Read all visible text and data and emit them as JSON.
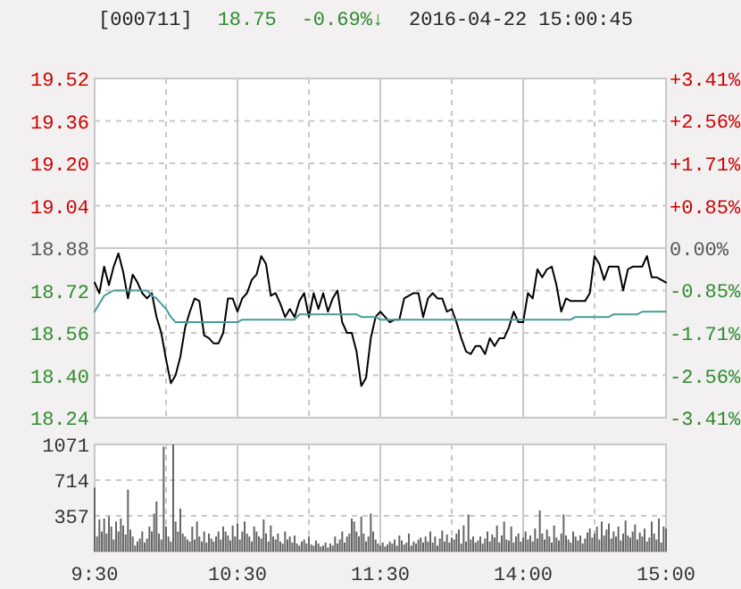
{
  "chart_data": [
    {
      "type": "line",
      "title": "[000711]",
      "annotations": [
        "18.75",
        "-0.69%↓",
        "2016-04-22 15:00:45"
      ],
      "categories": [
        null,
        null,
        null,
        null,
        null,
        null,
        null,
        null,
        null,
        null,
        null,
        null,
        null,
        null,
        null,
        null,
        null,
        null,
        null,
        null,
        null,
        null,
        null,
        null,
        null,
        null,
        null,
        null,
        null,
        null,
        null,
        null,
        null,
        null,
        null,
        null,
        null,
        null,
        null,
        null,
        null,
        null,
        null,
        null,
        null,
        null,
        null,
        null,
        null,
        null,
        null,
        null,
        null,
        null,
        null,
        null,
        null,
        null,
        null,
        null,
        null,
        null,
        null,
        null,
        null,
        null,
        null,
        null,
        null,
        null,
        null,
        null,
        null,
        null,
        null,
        null,
        null,
        null,
        null,
        null,
        null,
        null,
        null,
        null,
        null,
        null,
        null,
        null,
        null,
        null,
        null,
        null,
        null,
        null,
        null,
        null,
        null,
        null,
        null,
        null,
        null,
        null,
        null,
        null,
        null,
        null,
        null,
        null,
        null,
        null,
        null,
        null,
        null,
        null,
        null,
        null,
        null,
        null,
        null,
        null,
        null
      ],
      "ylim": [
        18.24,
        19.52
      ],
      "yticks": [
        {
          "value": 18.24,
          "label": "18.24"
        },
        {
          "value": 18.4,
          "label": "18.40"
        },
        {
          "value": 18.56,
          "label": "18.56"
        },
        {
          "value": 18.72,
          "label": "18.72"
        },
        {
          "value": 18.88,
          "label": "18.88"
        },
        {
          "value": 19.04,
          "label": "19.04"
        },
        {
          "value": 19.2,
          "label": "19.20"
        },
        {
          "value": 19.36,
          "label": "19.36"
        },
        {
          "value": 19.52,
          "label": "19.52"
        }
      ],
      "y2lim": [
        -3.41,
        3.41
      ],
      "y2ticks": [
        {
          "value": -3.41,
          "label": "-3.41%"
        },
        {
          "value": -2.56,
          "label": "-2.56%"
        },
        {
          "value": -1.71,
          "label": "-1.71%"
        },
        {
          "value": -0.85,
          "label": "-0.85%"
        },
        {
          "value": 0,
          "label": "0.00%"
        },
        {
          "value": 0.85,
          "label": "+0.85%"
        },
        {
          "value": 1.71,
          "label": "+1.71%"
        },
        {
          "value": 2.56,
          "label": "+2.56%"
        },
        {
          "value": 3.41,
          "label": "+3.41%"
        }
      ],
      "grid": true,
      "series": [
        {
          "color": "#000000",
          "values": [
            18.75,
            18.71,
            18.81,
            18.74,
            18.81,
            18.86,
            18.79,
            18.69,
            18.78,
            18.75,
            18.71,
            18.69,
            18.71,
            18.62,
            18.56,
            18.46,
            18.37,
            18.4,
            18.47,
            18.58,
            18.64,
            18.69,
            18.68,
            18.55,
            18.54,
            18.52,
            18.52,
            18.56,
            18.69,
            18.69,
            18.64,
            18.69,
            18.71,
            18.76,
            18.78,
            18.85,
            18.82,
            18.7,
            18.71,
            18.67,
            18.62,
            18.65,
            18.62,
            18.68,
            18.71,
            18.62,
            18.71,
            18.65,
            18.71,
            18.64,
            18.69,
            18.72,
            18.6,
            18.56,
            18.56,
            18.49,
            18.36,
            18.39,
            18.54,
            18.62,
            18.64,
            18.62,
            18.6,
            18.61,
            18.61,
            18.69,
            18.7,
            18.71,
            18.71,
            18.62,
            18.69,
            18.71,
            18.69,
            18.69,
            18.64,
            18.65,
            18.6,
            18.54,
            18.49,
            18.48,
            18.51,
            18.51,
            18.48,
            18.54,
            18.51,
            18.54,
            18.54,
            18.58,
            18.64,
            18.6,
            18.6,
            18.71,
            18.69,
            18.8,
            18.77,
            18.8,
            18.81,
            18.74,
            18.64,
            18.69,
            18.68,
            18.68,
            18.68,
            18.68,
            18.71,
            18.85,
            18.82,
            18.76,
            18.81,
            18.81,
            18.81,
            18.72,
            18.8,
            18.81,
            18.81,
            18.81,
            18.85,
            18.77,
            18.77,
            18.76,
            18.75
          ]
        },
        {
          "color": "#4a9a9a",
          "values": [
            18.64,
            18.67,
            18.7,
            18.71,
            18.72,
            18.72,
            18.72,
            18.72,
            18.72,
            18.72,
            18.72,
            18.72,
            18.7,
            18.69,
            18.67,
            18.65,
            18.62,
            18.6,
            18.6,
            18.6,
            18.6,
            18.6,
            18.6,
            18.6,
            18.6,
            18.6,
            18.6,
            18.6,
            18.6,
            18.6,
            18.6,
            18.61,
            18.61,
            18.61,
            18.61,
            18.61,
            18.61,
            18.61,
            18.61,
            18.61,
            18.61,
            18.61,
            18.61,
            18.63,
            18.63,
            18.63,
            18.63,
            18.63,
            18.63,
            18.63,
            18.63,
            18.63,
            18.63,
            18.63,
            18.63,
            18.63,
            18.62,
            18.62,
            18.62,
            18.62,
            18.61,
            18.61,
            18.61,
            18.61,
            18.61,
            18.61,
            18.61,
            18.61,
            18.61,
            18.61,
            18.61,
            18.61,
            18.61,
            18.61,
            18.61,
            18.61,
            18.61,
            18.61,
            18.61,
            18.61,
            18.61,
            18.61,
            18.61,
            18.61,
            18.61,
            18.61,
            18.61,
            18.61,
            18.61,
            18.61,
            18.61,
            18.61,
            18.61,
            18.61,
            18.61,
            18.61,
            18.61,
            18.61,
            18.61,
            18.61,
            18.61,
            18.62,
            18.62,
            18.62,
            18.62,
            18.62,
            18.62,
            18.62,
            18.62,
            18.63,
            18.63,
            18.63,
            18.63,
            18.63,
            18.63,
            18.64,
            18.64,
            18.64,
            18.64,
            18.64,
            18.64
          ]
        }
      ]
    },
    {
      "type": "bar",
      "categories": [
        "9:30",
        null,
        null,
        null,
        null,
        null,
        null,
        null,
        null,
        null,
        null,
        null,
        null,
        null,
        null,
        null,
        null,
        null,
        null,
        null,
        null,
        null,
        null,
        null,
        null,
        null,
        null,
        null,
        null,
        null,
        null,
        null,
        null,
        null,
        null,
        null,
        null,
        null,
        null,
        null,
        null,
        null,
        null,
        null,
        null,
        null,
        null,
        null,
        null,
        null,
        null,
        null,
        null,
        null,
        null,
        null,
        null,
        null,
        null,
        null,
        "10:30",
        null,
        null,
        null,
        null,
        null,
        null,
        null,
        null,
        null,
        null,
        null,
        null,
        null,
        null,
        null,
        null,
        null,
        null,
        null,
        null,
        null,
        null,
        null,
        null,
        null,
        null,
        null,
        null,
        null,
        null,
        null,
        null,
        null,
        null,
        null,
        null,
        null,
        null,
        null,
        null,
        null,
        null,
        null,
        null,
        null,
        null,
        null,
        null,
        null,
        null,
        null,
        null,
        null,
        null,
        null,
        null,
        null,
        null,
        null,
        "11:30",
        null,
        null,
        null,
        null,
        null,
        null,
        null,
        null,
        null,
        null,
        null,
        null,
        null,
        null,
        null,
        null,
        null,
        null,
        null,
        null,
        null,
        null,
        null,
        null,
        null,
        null,
        null,
        null,
        null,
        null,
        null,
        null,
        null,
        null,
        null,
        null,
        null,
        null,
        null,
        null,
        null,
        null,
        null,
        null,
        null,
        null,
        null,
        null,
        null,
        null,
        null,
        null,
        null,
        null,
        null,
        null,
        null,
        null,
        null,
        "14:00",
        null,
        null,
        null,
        null,
        null,
        null,
        null,
        null,
        null,
        null,
        null,
        null,
        null,
        null,
        null,
        null,
        null,
        null,
        null,
        null,
        null,
        null,
        null,
        null,
        null,
        null,
        null,
        null,
        null,
        null,
        null,
        null,
        null,
        null,
        null,
        null,
        null,
        null,
        null,
        null,
        null,
        null,
        null,
        null,
        null,
        null,
        null,
        null,
        null,
        null,
        null,
        null,
        null,
        null,
        null,
        null,
        null,
        null,
        null,
        "15:00"
      ],
      "ylim": [
        0,
        1071
      ],
      "yticks": [
        {
          "value": 0,
          "label": null
        },
        357,
        714,
        1071
      ],
      "grid": true,
      "series": [
        {
          "color": "#666666",
          "values": [
            640,
            150,
            320,
            200,
            330,
            180,
            350,
            250,
            120,
            300,
            200,
            330,
            260,
            170,
            620,
            220,
            150,
            60,
            100,
            130,
            200,
            90,
            130,
            250,
            200,
            380,
            500,
            180,
            120,
            1050,
            250,
            150,
            100,
            1070,
            300,
            200,
            430,
            180,
            150,
            120,
            100,
            250,
            120,
            300,
            150,
            100,
            200,
            90,
            180,
            130,
            100,
            150,
            200,
            120,
            250,
            200,
            160,
            110,
            260,
            150,
            280,
            120,
            200,
            300,
            180,
            150,
            100,
            250,
            200,
            150,
            130,
            320,
            180,
            100,
            260,
            150,
            120,
            180,
            100,
            80,
            200,
            120,
            150,
            90,
            160,
            80,
            60,
            100,
            120,
            80,
            150,
            70,
            60,
            110,
            80,
            50,
            60,
            90,
            40,
            80,
            60,
            150,
            80,
            120,
            200,
            90,
            150,
            180,
            330,
            300,
            200,
            150,
            350,
            180,
            100,
            150,
            380,
            200,
            120,
            80,
            60,
            90,
            50,
            70,
            100,
            80,
            120,
            60,
            160,
            110,
            70,
            90,
            180,
            60,
            100,
            80,
            120,
            140,
            90,
            150,
            100,
            200,
            90,
            150,
            60,
            130,
            210,
            100,
            170,
            90,
            140,
            120,
            180,
            220,
            80,
            260,
            100,
            370,
            120,
            150,
            90,
            110,
            150,
            80,
            130,
            200,
            100,
            170,
            140,
            260,
            90,
            160,
            300,
            120,
            110,
            250,
            90,
            150,
            180,
            100,
            140,
            200,
            120,
            160,
            100,
            230,
            130,
            410,
            180,
            120,
            220,
            150,
            90,
            260,
            140,
            110,
            180,
            370,
            160,
            120,
            90,
            200,
            150,
            110,
            160,
            80,
            130,
            190,
            230,
            140,
            180,
            250,
            120,
            300,
            160,
            220,
            280,
            130,
            200,
            150,
            250,
            110,
            180,
            310,
            160,
            140,
            200,
            270,
            120,
            190,
            150,
            230,
            100,
            140,
            300,
            180,
            120,
            330,
            90,
            250,
            230
          ]
        }
      ]
    }
  ]
}
